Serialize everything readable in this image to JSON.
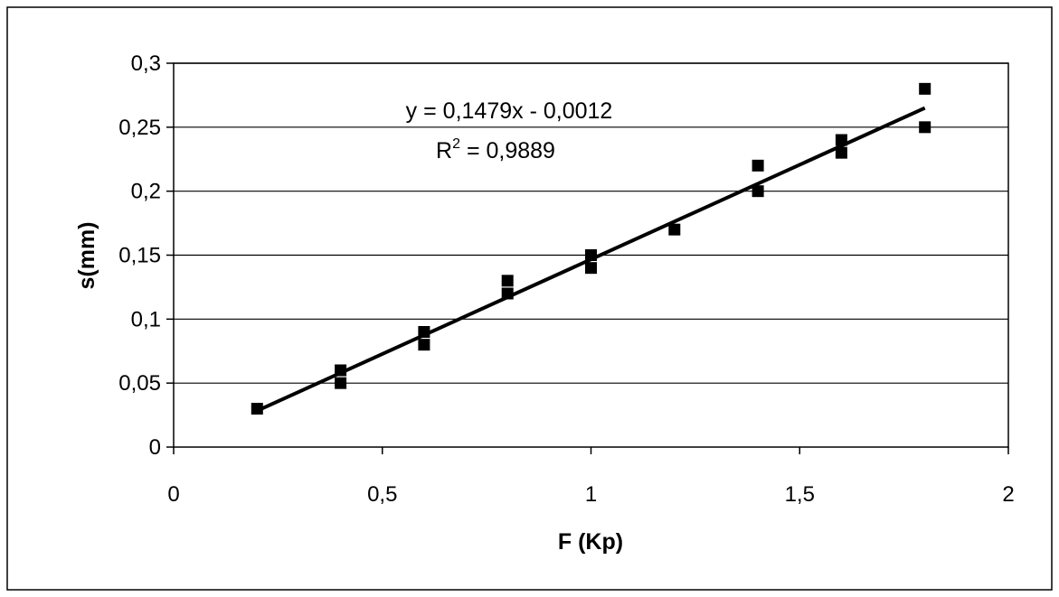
{
  "chart_data": {
    "type": "scatter",
    "title": "",
    "xlabel": "F (Kp)",
    "ylabel": "s(mm)",
    "xlim": [
      0,
      2
    ],
    "ylim": [
      0,
      0.3
    ],
    "x_ticks": [
      0,
      0.5,
      1,
      1.5,
      2
    ],
    "x_tick_labels": [
      "0",
      "0,5",
      "1",
      "1,5",
      "2"
    ],
    "y_ticks": [
      0,
      0.05,
      0.1,
      0.15,
      0.2,
      0.25,
      0.3
    ],
    "y_tick_labels": [
      "0",
      "0,05",
      "0,1",
      "0,15",
      "0,2",
      "0,25",
      "0,3"
    ],
    "grid": "horizontal",
    "legend": "none",
    "marker": "square",
    "colors": {
      "marker": "#000000",
      "trendline": "#000000",
      "grid": "#000000"
    },
    "series": [
      {
        "points": [
          {
            "x": 0.2,
            "y": 0.03
          },
          {
            "x": 0.4,
            "y": 0.05
          },
          {
            "x": 0.4,
            "y": 0.06
          },
          {
            "x": 0.6,
            "y": 0.08
          },
          {
            "x": 0.6,
            "y": 0.09
          },
          {
            "x": 0.8,
            "y": 0.12
          },
          {
            "x": 0.8,
            "y": 0.13
          },
          {
            "x": 1.0,
            "y": 0.14
          },
          {
            "x": 1.0,
            "y": 0.15
          },
          {
            "x": 1.2,
            "y": 0.17
          },
          {
            "x": 1.4,
            "y": 0.2
          },
          {
            "x": 1.4,
            "y": 0.22
          },
          {
            "x": 1.6,
            "y": 0.23
          },
          {
            "x": 1.6,
            "y": 0.24
          },
          {
            "x": 1.8,
            "y": 0.25
          },
          {
            "x": 1.8,
            "y": 0.28
          }
        ]
      }
    ],
    "trendline": {
      "type": "linear",
      "slope": 0.1479,
      "intercept": -0.0012,
      "x_range": [
        0.2,
        1.8
      ],
      "equation_label": "y = 0,1479x - 0,0012",
      "r2_label_prefix": "R",
      "r2_label_sup": "2",
      "r2_label_suffix": " = 0,9889"
    }
  }
}
